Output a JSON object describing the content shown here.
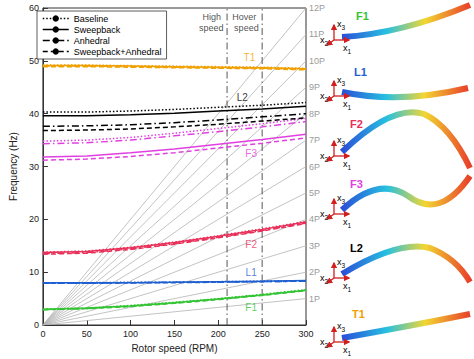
{
  "chart_data": {
    "type": "line",
    "xlabel": "Rotor speed (RPM)",
    "ylabel": "Frequency (Hz)",
    "xlim": [
      0,
      300
    ],
    "xticks": [
      0,
      50,
      100,
      150,
      200,
      250,
      300
    ],
    "ylim": [
      0,
      60
    ],
    "yticks": [
      0,
      10,
      20,
      30,
      40,
      50,
      60
    ],
    "grid": false,
    "legend": "upper left",
    "x": [
      0,
      50,
      100,
      150,
      200,
      250,
      300
    ],
    "series": [
      {
        "name": "Baseline",
        "line_style": "dotted",
        "modes": [
          {
            "label": "F1",
            "color": "#33c433",
            "values": [
              3.0,
              3.2,
              3.7,
              4.3,
              5.0,
              5.8,
              6.7
            ]
          },
          {
            "label": "L1",
            "color": "#1f5fd0",
            "values": [
              8.0,
              8.0,
              8.1,
              8.1,
              8.2,
              8.3,
              8.4
            ]
          },
          {
            "label": "F2",
            "color": "#e8305a",
            "values": [
              13.8,
              14.0,
              14.7,
              15.7,
              16.9,
              18.2,
              19.6
            ]
          },
          {
            "label": "F3",
            "color": "#e040e0",
            "values": [
              34.8,
              35.0,
              35.5,
              36.3,
              37.2,
              38.1,
              39.1
            ]
          },
          {
            "label": "L2",
            "color": "#000000",
            "values": [
              40.3,
              40.3,
              40.5,
              40.8,
              41.2,
              41.6,
              42.1
            ]
          },
          {
            "label": "T1",
            "color": "#f0a000",
            "values": [
              49.2,
              49.2,
              49.1,
              49.0,
              48.9,
              48.8,
              48.6
            ]
          }
        ]
      },
      {
        "name": "Sweepback",
        "line_style": "solid",
        "modes": [
          {
            "label": "F1",
            "color": "#33c433",
            "values": [
              3.0,
              3.2,
              3.6,
              4.2,
              4.9,
              5.7,
              6.6
            ]
          },
          {
            "label": "L1",
            "color": "#1f5fd0",
            "values": [
              8.0,
              8.0,
              8.0,
              8.1,
              8.2,
              8.3,
              8.4
            ]
          },
          {
            "label": "F2",
            "color": "#e8305a",
            "values": [
              13.7,
              13.9,
              14.6,
              15.6,
              16.8,
              18.1,
              19.5
            ]
          },
          {
            "label": "F3",
            "color": "#e040e0",
            "values": [
              31.8,
              32.0,
              32.6,
              33.3,
              34.2,
              35.1,
              36.1
            ]
          },
          {
            "label": "L2",
            "color": "#000000",
            "values": [
              39.6,
              39.6,
              39.8,
              40.1,
              40.5,
              40.9,
              41.4
            ]
          },
          {
            "label": "T1",
            "color": "#f0a000",
            "values": [
              49.1,
              49.1,
              49.0,
              48.9,
              48.8,
              48.7,
              48.5
            ]
          }
        ]
      },
      {
        "name": "Anhedral",
        "line_style": "dashdot",
        "modes": [
          {
            "label": "F1",
            "color": "#33c433",
            "values": [
              2.9,
              3.1,
              3.6,
              4.2,
              4.9,
              5.7,
              6.6
            ]
          },
          {
            "label": "L1",
            "color": "#1f5fd0",
            "values": [
              7.9,
              7.9,
              8.0,
              8.1,
              8.1,
              8.2,
              8.3
            ]
          },
          {
            "label": "F2",
            "color": "#e8305a",
            "values": [
              13.5,
              13.7,
              14.4,
              15.4,
              16.6,
              17.9,
              19.3
            ]
          },
          {
            "label": "F3",
            "color": "#e040e0",
            "values": [
              34.3,
              34.5,
              35.0,
              35.8,
              36.6,
              37.5,
              38.5
            ]
          },
          {
            "label": "L2",
            "color": "#000000",
            "values": [
              37.6,
              37.7,
              37.9,
              38.3,
              38.8,
              39.4,
              40.0
            ]
          },
          {
            "label": "T1",
            "color": "#f0a000",
            "values": [
              49.0,
              49.0,
              48.9,
              48.8,
              48.7,
              48.6,
              48.4
            ]
          }
        ]
      },
      {
        "name": "Sweepback+Anhedral",
        "line_style": "dashed",
        "modes": [
          {
            "label": "F1",
            "color": "#33c433",
            "values": [
              2.9,
              3.1,
              3.5,
              4.1,
              4.8,
              5.6,
              6.5
            ]
          },
          {
            "label": "L1",
            "color": "#1f5fd0",
            "values": [
              7.9,
              7.9,
              8.0,
              8.0,
              8.1,
              8.2,
              8.3
            ]
          },
          {
            "label": "F2",
            "color": "#e8305a",
            "values": [
              13.4,
              13.6,
              14.3,
              15.3,
              16.5,
              17.8,
              19.2
            ]
          },
          {
            "label": "F3",
            "color": "#e040e0",
            "values": [
              31.2,
              31.4,
              31.9,
              32.6,
              33.5,
              34.4,
              35.4
            ]
          },
          {
            "label": "L2",
            "color": "#000000",
            "values": [
              36.8,
              36.9,
              37.1,
              37.5,
              38.0,
              38.6,
              39.2
            ]
          },
          {
            "label": "T1",
            "color": "#f0a000",
            "values": [
              48.9,
              48.9,
              48.8,
              48.7,
              48.6,
              48.5,
              48.3
            ]
          }
        ]
      }
    ],
    "per_rev": [
      {
        "label": "1P",
        "x": [
          0,
          300
        ],
        "values": [
          0,
          5
        ]
      },
      {
        "label": "2P",
        "x": [
          0,
          300
        ],
        "values": [
          0,
          10
        ]
      },
      {
        "label": "3P",
        "x": [
          0,
          300
        ],
        "values": [
          0,
          15
        ]
      },
      {
        "label": "4P",
        "x": [
          0,
          300
        ],
        "values": [
          0,
          20
        ]
      },
      {
        "label": "5P",
        "x": [
          0,
          300
        ],
        "values": [
          0,
          25
        ]
      },
      {
        "label": "6P",
        "x": [
          0,
          300
        ],
        "values": [
          0,
          30
        ]
      },
      {
        "label": "7P",
        "x": [
          0,
          300
        ],
        "values": [
          0,
          35
        ]
      },
      {
        "label": "8P",
        "x": [
          0,
          300
        ],
        "values": [
          0,
          40
        ]
      },
      {
        "label": "9P",
        "x": [
          0,
          300
        ],
        "values": [
          0,
          45
        ]
      },
      {
        "label": "10P",
        "x": [
          0,
          300
        ],
        "values": [
          0,
          50
        ]
      },
      {
        "label": "11P",
        "x": [
          0,
          300
        ],
        "values": [
          0,
          55
        ]
      },
      {
        "label": "12P",
        "x": [
          0,
          300
        ],
        "values": [
          0,
          60
        ]
      }
    ],
    "reference_lines": [
      {
        "x": 210,
        "label": "High speed"
      },
      {
        "x": 250,
        "label": "Hover speed"
      }
    ],
    "annotations": [
      {
        "text": "F1",
        "x": 238,
        "y": 3.3,
        "color": "#33c433"
      },
      {
        "text": "L1",
        "x": 238,
        "y": 9.8,
        "color": "#1f5fd0"
      },
      {
        "text": "F2",
        "x": 238,
        "y": 15.2,
        "color": "#e8305a"
      },
      {
        "text": "F3",
        "x": 238,
        "y": 32.3,
        "color": "#e040e0"
      },
      {
        "text": "L2",
        "x": 228,
        "y": 43.0,
        "color": "#000000"
      },
      {
        "text": "T1",
        "x": 236,
        "y": 50.6,
        "color": "#f0a000"
      }
    ]
  },
  "mode_shapes": {
    "axis_labels": [
      "x1",
      "x2",
      "x3"
    ],
    "shapes": [
      {
        "label": "F1",
        "color": "#33c433"
      },
      {
        "label": "L1",
        "color": "#1f5fd0"
      },
      {
        "label": "F2",
        "color": "#e8305a"
      },
      {
        "label": "F3",
        "color": "#e040e0"
      },
      {
        "label": "L2",
        "color": "#000000"
      },
      {
        "label": "T1",
        "color": "#f0a000"
      }
    ]
  }
}
